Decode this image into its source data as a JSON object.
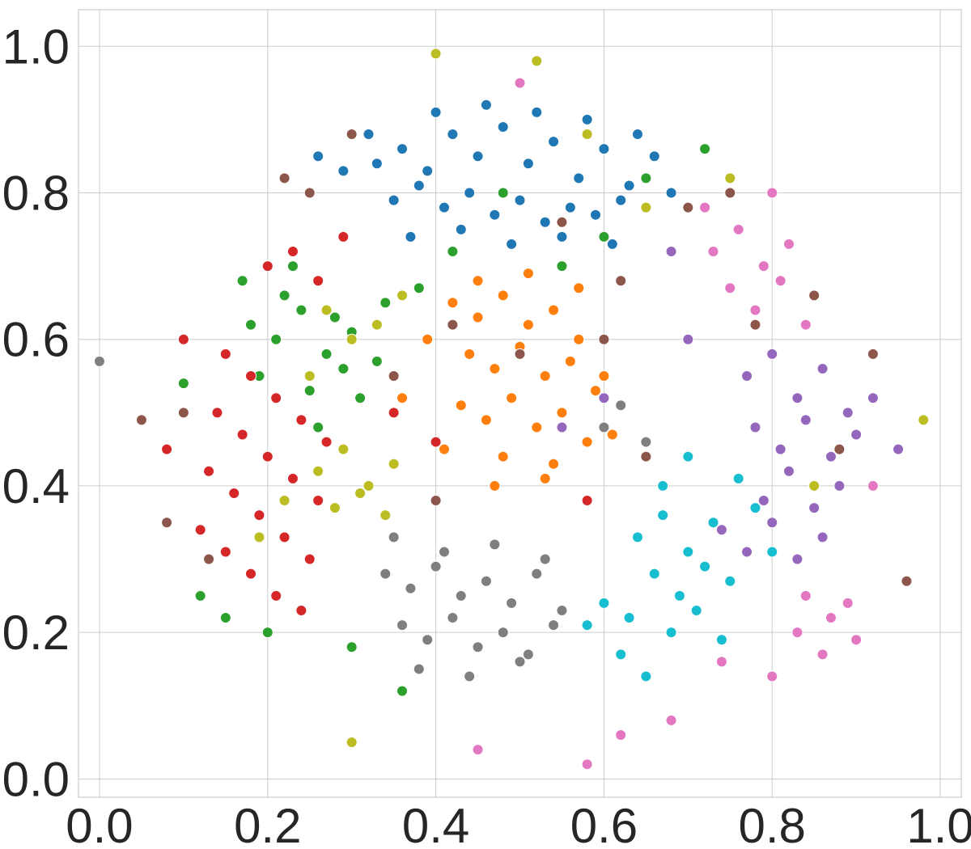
{
  "chart_data": {
    "type": "scatter",
    "title": "",
    "xlabel": "",
    "ylabel": "",
    "xlim": [
      -0.025,
      1.025
    ],
    "ylim": [
      -0.025,
      1.05
    ],
    "grid": true,
    "legend": "none",
    "x_ticks": [
      0.0,
      0.2,
      0.4,
      0.6,
      0.8,
      1.0
    ],
    "x_tick_labels": [
      "0.0",
      "0.2",
      "0.4",
      "0.6",
      "0.8",
      "1.0"
    ],
    "y_ticks": [
      0.0,
      0.2,
      0.4,
      0.6,
      0.8,
      1.0
    ],
    "y_tick_labels": [
      "0.0",
      "0.2",
      "0.4",
      "0.6",
      "0.8",
      "1.0"
    ],
    "colors": {
      "axis_text": "#262626",
      "grid": "#cccccc",
      "marker_edge": "#ffffff"
    },
    "series": [
      {
        "color": "#1f77b4",
        "x": [
          0.33,
          0.36,
          0.39,
          0.42,
          0.45,
          0.48,
          0.51,
          0.54,
          0.57,
          0.6,
          0.63,
          0.66,
          0.35,
          0.38,
          0.41,
          0.44,
          0.47,
          0.5,
          0.53,
          0.56,
          0.59,
          0.62,
          0.32,
          0.4,
          0.46,
          0.52,
          0.58,
          0.64,
          0.37,
          0.43,
          0.49,
          0.55,
          0.61,
          0.29,
          0.26,
          0.68
        ],
        "y": [
          0.84,
          0.86,
          0.83,
          0.88,
          0.85,
          0.89,
          0.84,
          0.87,
          0.82,
          0.86,
          0.81,
          0.85,
          0.79,
          0.81,
          0.78,
          0.8,
          0.77,
          0.79,
          0.76,
          0.78,
          0.77,
          0.79,
          0.88,
          0.91,
          0.92,
          0.91,
          0.9,
          0.88,
          0.74,
          0.75,
          0.73,
          0.74,
          0.73,
          0.83,
          0.85,
          0.8
        ]
      },
      {
        "color": "#ff7f0e",
        "x": [
          0.42,
          0.45,
          0.48,
          0.51,
          0.54,
          0.57,
          0.44,
          0.47,
          0.5,
          0.53,
          0.56,
          0.59,
          0.43,
          0.46,
          0.49,
          0.52,
          0.55,
          0.58,
          0.41,
          0.48,
          0.54,
          0.61,
          0.39,
          0.45,
          0.51,
          0.57,
          0.6,
          0.36,
          0.47,
          0.53
        ],
        "y": [
          0.65,
          0.63,
          0.66,
          0.62,
          0.64,
          0.6,
          0.58,
          0.56,
          0.59,
          0.55,
          0.57,
          0.53,
          0.51,
          0.49,
          0.52,
          0.48,
          0.5,
          0.46,
          0.45,
          0.44,
          0.43,
          0.47,
          0.6,
          0.68,
          0.69,
          0.67,
          0.55,
          0.52,
          0.4,
          0.41
        ]
      },
      {
        "color": "#2ca02c",
        "x": [
          0.18,
          0.21,
          0.24,
          0.27,
          0.3,
          0.33,
          0.19,
          0.22,
          0.25,
          0.28,
          0.31,
          0.34,
          0.17,
          0.23,
          0.29,
          0.15,
          0.12,
          0.1,
          0.38,
          0.42,
          0.55,
          0.6,
          0.65,
          0.72,
          0.3,
          0.36,
          0.48,
          0.2,
          0.26
        ],
        "y": [
          0.62,
          0.6,
          0.64,
          0.58,
          0.61,
          0.57,
          0.55,
          0.66,
          0.53,
          0.63,
          0.52,
          0.65,
          0.68,
          0.7,
          0.56,
          0.22,
          0.25,
          0.54,
          0.67,
          0.72,
          0.7,
          0.74,
          0.82,
          0.86,
          0.18,
          0.12,
          0.8,
          0.2,
          0.48
        ]
      },
      {
        "color": "#d62728",
        "x": [
          0.15,
          0.18,
          0.21,
          0.24,
          0.27,
          0.14,
          0.17,
          0.2,
          0.23,
          0.26,
          0.13,
          0.16,
          0.19,
          0.22,
          0.25,
          0.12,
          0.15,
          0.18,
          0.21,
          0.24,
          0.2,
          0.23,
          0.26,
          0.29,
          0.35,
          0.4,
          0.58,
          0.08,
          0.1
        ],
        "y": [
          0.58,
          0.55,
          0.52,
          0.49,
          0.46,
          0.5,
          0.47,
          0.44,
          0.41,
          0.38,
          0.42,
          0.39,
          0.36,
          0.33,
          0.3,
          0.34,
          0.31,
          0.28,
          0.25,
          0.23,
          0.7,
          0.72,
          0.68,
          0.74,
          0.5,
          0.46,
          0.38,
          0.45,
          0.6
        ]
      },
      {
        "color": "#9467bd",
        "x": [
          0.77,
          0.8,
          0.83,
          0.86,
          0.89,
          0.78,
          0.81,
          0.84,
          0.87,
          0.9,
          0.76,
          0.79,
          0.82,
          0.85,
          0.88,
          0.74,
          0.77,
          0.8,
          0.83,
          0.86,
          0.92,
          0.95,
          0.7,
          0.68,
          0.6,
          0.55
        ],
        "y": [
          0.55,
          0.58,
          0.52,
          0.56,
          0.5,
          0.48,
          0.45,
          0.49,
          0.44,
          0.47,
          0.41,
          0.38,
          0.42,
          0.37,
          0.4,
          0.34,
          0.31,
          0.35,
          0.3,
          0.33,
          0.52,
          0.45,
          0.6,
          0.72,
          0.52,
          0.48
        ]
      },
      {
        "color": "#8c564b",
        "x": [
          0.1,
          0.13,
          0.25,
          0.3,
          0.42,
          0.55,
          0.62,
          0.7,
          0.78,
          0.85,
          0.92,
          0.96,
          0.08,
          0.22,
          0.35,
          0.5,
          0.65,
          0.75,
          0.88,
          0.05,
          0.4,
          0.6
        ],
        "y": [
          0.5,
          0.3,
          0.8,
          0.88,
          0.62,
          0.76,
          0.68,
          0.78,
          0.62,
          0.66,
          0.58,
          0.27,
          0.35,
          0.82,
          0.55,
          0.58,
          0.44,
          0.8,
          0.45,
          0.49,
          0.38,
          0.6
        ]
      },
      {
        "color": "#e377c2",
        "x": [
          0.73,
          0.76,
          0.79,
          0.82,
          0.75,
          0.78,
          0.81,
          0.84,
          0.72,
          0.8,
          0.84,
          0.87,
          0.9,
          0.86,
          0.83,
          0.89,
          0.92,
          0.8,
          0.74,
          0.68,
          0.62,
          0.5,
          0.45,
          0.58
        ],
        "y": [
          0.72,
          0.75,
          0.7,
          0.73,
          0.67,
          0.64,
          0.68,
          0.62,
          0.78,
          0.8,
          0.25,
          0.22,
          0.19,
          0.17,
          0.2,
          0.24,
          0.4,
          0.14,
          0.16,
          0.08,
          0.06,
          0.95,
          0.04,
          0.02
        ]
      },
      {
        "color": "#7f7f7f",
        "x": [
          0.34,
          0.37,
          0.4,
          0.43,
          0.46,
          0.49,
          0.52,
          0.55,
          0.36,
          0.39,
          0.42,
          0.45,
          0.48,
          0.51,
          0.54,
          0.35,
          0.41,
          0.47,
          0.53,
          0.38,
          0.44,
          0.5,
          0.6,
          0.62,
          0.65,
          0.0
        ],
        "y": [
          0.28,
          0.26,
          0.29,
          0.25,
          0.27,
          0.24,
          0.28,
          0.23,
          0.21,
          0.19,
          0.22,
          0.18,
          0.2,
          0.17,
          0.21,
          0.33,
          0.31,
          0.32,
          0.3,
          0.15,
          0.14,
          0.16,
          0.48,
          0.51,
          0.46,
          0.57
        ]
      },
      {
        "color": "#bcbd22",
        "x": [
          0.26,
          0.29,
          0.32,
          0.35,
          0.28,
          0.31,
          0.34,
          0.27,
          0.33,
          0.3,
          0.36,
          0.25,
          0.22,
          0.19,
          0.4,
          0.52,
          0.65,
          0.75,
          0.85,
          0.98,
          0.3,
          0.58
        ],
        "y": [
          0.42,
          0.45,
          0.4,
          0.43,
          0.37,
          0.39,
          0.36,
          0.64,
          0.62,
          0.6,
          0.66,
          0.55,
          0.38,
          0.33,
          0.99,
          0.98,
          0.78,
          0.82,
          0.4,
          0.49,
          0.05,
          0.88
        ]
      },
      {
        "color": "#17becf",
        "x": [
          0.64,
          0.67,
          0.7,
          0.73,
          0.66,
          0.69,
          0.72,
          0.75,
          0.63,
          0.68,
          0.71,
          0.74,
          0.62,
          0.65,
          0.6,
          0.58,
          0.76,
          0.78,
          0.8,
          0.7,
          0.67
        ],
        "y": [
          0.33,
          0.36,
          0.31,
          0.35,
          0.28,
          0.25,
          0.29,
          0.27,
          0.22,
          0.2,
          0.23,
          0.19,
          0.17,
          0.14,
          0.24,
          0.21,
          0.41,
          0.37,
          0.31,
          0.44,
          0.4
        ]
      }
    ]
  }
}
